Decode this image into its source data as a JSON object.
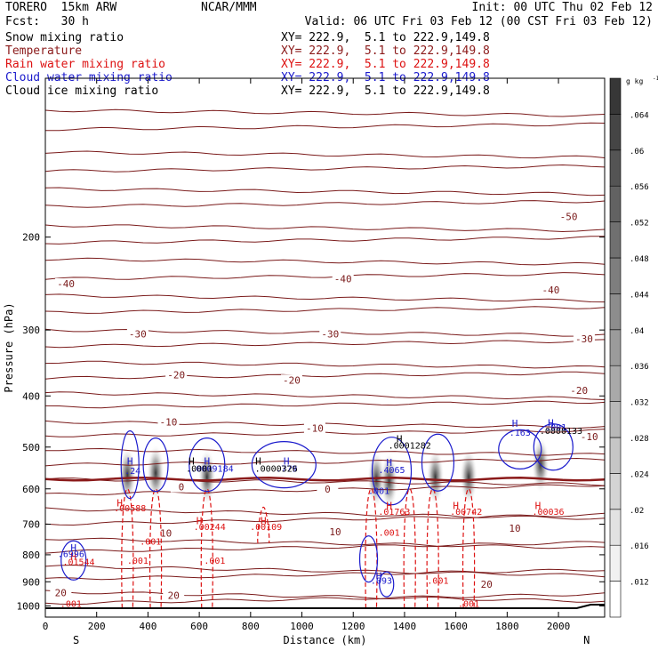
{
  "header": {
    "model": "TORERO  15km ARW",
    "center": "NCAR/MMM",
    "init": "Init: 00 UTC Thu 02 Feb 12",
    "fcst": "Fcst:   30 h",
    "valid": "Valid: 06 UTC Fri 03 Feb 12 (00 CST Fri 03 Feb 12)"
  },
  "legend": [
    {
      "name": "Snow mixing ratio",
      "xy": "XY= 222.9,  5.1 to 222.9,149.8",
      "color": "#000000"
    },
    {
      "name": "Temperature",
      "xy": "XY= 222.9,  5.1 to 222.9,149.8",
      "color": "#8b1a1a"
    },
    {
      "name": "Rain water mixing ratio",
      "xy": "XY= 222.9,  5.1 to 222.9,149.8",
      "color": "#dd1111"
    },
    {
      "name": "Cloud water mixing ratio",
      "xy": "XY= 222.9,  5.1 to 222.9,149.8",
      "color": "#1a1acc"
    },
    {
      "name": "Cloud ice mixing ratio",
      "xy": "XY= 222.9,  5.1 to 222.9,149.8",
      "color": "#000000"
    }
  ],
  "chart_data": {
    "type": "heatmap",
    "xlabel": "Distance (km)",
    "ylabel": "Pressure (hPa)",
    "x_ticks": [
      0,
      200,
      400,
      600,
      800,
      1000,
      1200,
      1400,
      1600,
      1800,
      2000
    ],
    "y_ticks": [
      200,
      300,
      400,
      500,
      600,
      700,
      800,
      900,
      1000
    ],
    "xlim": [
      0,
      2180
    ],
    "ylim": [
      1050,
      100
    ],
    "y_scale": "log",
    "left_end_label": "S",
    "right_end_label": "N",
    "colorbar": {
      "unit": "g kg",
      "unit_exp": "-1",
      "ticks": [
        ".012",
        ".016",
        ".02",
        ".024",
        ".028",
        ".032",
        ".036",
        ".04",
        ".044",
        ".048",
        ".052",
        ".056",
        ".06",
        ".064"
      ]
    },
    "snow_cores": [
      {
        "x": 320,
        "p": 565
      },
      {
        "x": 430,
        "p": 560
      },
      {
        "x": 630,
        "p": 570
      },
      {
        "x": 1290,
        "p": 575
      },
      {
        "x": 1340,
        "p": 580
      },
      {
        "x": 1520,
        "p": 570
      },
      {
        "x": 1650,
        "p": 570
      },
      {
        "x": 1930,
        "p": 540
      }
    ],
    "temperature_isotherms": [
      {
        "label": "-50",
        "label_x": 2040,
        "p": 183
      },
      {
        "label": "-40",
        "label_x": 80,
        "p": 245
      },
      {
        "label": "-40",
        "label_x": 1160,
        "p": 240
      },
      {
        "label": "-40",
        "label_x": 1970,
        "p": 252
      },
      {
        "label": "-30",
        "label_x": 360,
        "p": 305
      },
      {
        "label": "-30",
        "label_x": 1110,
        "p": 305
      },
      {
        "label": "-30",
        "label_x": 2100,
        "p": 312
      },
      {
        "label": "-20",
        "label_x": 510,
        "p": 365
      },
      {
        "label": "-20",
        "label_x": 960,
        "p": 373
      },
      {
        "label": "-20",
        "label_x": 2080,
        "p": 390
      },
      {
        "label": "-10",
        "label_x": 480,
        "p": 448
      },
      {
        "label": "-10",
        "label_x": 1050,
        "p": 460
      },
      {
        "label": "-10",
        "label_x": 2120,
        "p": 478
      },
      {
        "label": "0",
        "label_x": 530,
        "p": 595
      },
      {
        "label": "0",
        "label_x": 1100,
        "p": 600
      },
      {
        "label": "10",
        "label_x": 470,
        "p": 728
      },
      {
        "label": "10",
        "label_x": 1130,
        "p": 724
      },
      {
        "label": "10",
        "label_x": 1830,
        "p": 713
      },
      {
        "label": "20",
        "label_x": 60,
        "p": 943
      },
      {
        "label": "20",
        "label_x": 500,
        "p": 955
      },
      {
        "label": "20",
        "label_x": 1720,
        "p": 910
      }
    ],
    "rain_labels": [
      {
        "text": ".00588",
        "x": 330,
        "p": 662
      },
      {
        "text": ".00244",
        "x": 640,
        "p": 718
      },
      {
        "text": ".00109",
        "x": 860,
        "p": 718
      },
      {
        "text": ".01763",
        "x": 1360,
        "p": 672
      },
      {
        "text": ".00742",
        "x": 1640,
        "p": 672
      },
      {
        "text": ".00036",
        "x": 1960,
        "p": 672
      },
      {
        "text": ".001",
        "x": 410,
        "p": 765
      },
      {
        "text": ".001",
        "x": 360,
        "p": 832
      },
      {
        "text": ".001",
        "x": 660,
        "p": 832
      },
      {
        "text": ".001",
        "x": 1340,
        "p": 736
      },
      {
        "text": ".001",
        "x": 1530,
        "p": 908
      },
      {
        "text": ".001",
        "x": 100,
        "p": 1005
      },
      {
        "text": ".001",
        "x": 1650,
        "p": 1005
      },
      {
        "text": ".01544",
        "x": 130,
        "p": 836
      }
    ],
    "cloud_water_labels": [
      {
        "text": ".24",
        "x": 340,
        "p": 562
      },
      {
        "text": ".0009184",
        "x": 650,
        "p": 557
      },
      {
        "text": ".779",
        "x": 940,
        "p": 557
      },
      {
        "text": ".4065",
        "x": 1350,
        "p": 560
      },
      {
        "text": ".001",
        "x": 1300,
        "p": 613
      },
      {
        "text": ".163",
        "x": 1850,
        "p": 476
      },
      {
        "text": ".001",
        "x": 1990,
        "p": 465
      },
      {
        "text": ".6996",
        "x": 100,
        "p": 808
      },
      {
        "text": ".093",
        "x": 1310,
        "p": 908
      }
    ],
    "ice_labels": [
      {
        "text": ".0001282",
        "x": 1420,
        "p": 503
      },
      {
        "text": ".0000133",
        "x": 2010,
        "p": 472
      },
      {
        "text": ".0000326",
        "x": 900,
        "p": 557
      },
      {
        "text": ".0001",
        "x": 600,
        "p": 557
      }
    ],
    "h_markers": [
      {
        "color": "#1a1acc",
        "x": 330,
        "p": 540
      },
      {
        "color": "#1a1acc",
        "x": 630,
        "p": 540
      },
      {
        "color": "#1a1acc",
        "x": 940,
        "p": 540
      },
      {
        "color": "#1a1acc",
        "x": 1340,
        "p": 543
      },
      {
        "color": "#1a1acc",
        "x": 1830,
        "p": 458
      },
      {
        "color": "#1a1acc",
        "x": 1970,
        "p": 457
      },
      {
        "color": "#1a1acc",
        "x": 110,
        "p": 788
      },
      {
        "color": "#1a1acc",
        "x": 1300,
        "p": 890
      },
      {
        "color": "#000000",
        "x": 570,
        "p": 540
      },
      {
        "color": "#000000",
        "x": 830,
        "p": 540
      },
      {
        "color": "#000000",
        "x": 1380,
        "p": 490
      },
      {
        "color": "#dd1111",
        "x": 290,
        "p": 648
      },
      {
        "color": "#dd1111",
        "x": 600,
        "p": 700
      },
      {
        "color": "#dd1111",
        "x": 850,
        "p": 700
      },
      {
        "color": "#dd1111",
        "x": 1340,
        "p": 655
      },
      {
        "color": "#dd1111",
        "x": 1600,
        "p": 655
      },
      {
        "color": "#dd1111",
        "x": 1920,
        "p": 655
      },
      {
        "color": "#dd1111",
        "x": 110,
        "p": 818
      }
    ]
  }
}
